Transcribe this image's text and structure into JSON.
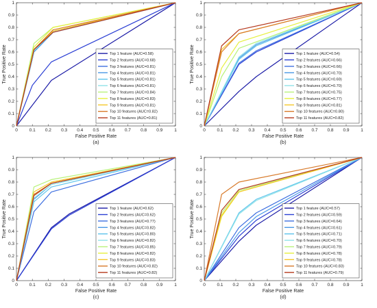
{
  "colors": [
    "#1a1aa6",
    "#2b3fd4",
    "#3d6fe0",
    "#4a98e6",
    "#5ec4ec",
    "#8fe3e8",
    "#b8f27a",
    "#e6f03c",
    "#f5c82a",
    "#d87a2a",
    "#b5381c"
  ],
  "chart_data": [
    {
      "type": "line",
      "caption": "(a)",
      "xlabel": "False Positive Rate",
      "ylabel": "True Positive Rate",
      "xlim": [
        0,
        1
      ],
      "ylim": [
        0,
        1
      ],
      "xticks": [
        "0",
        "0.1",
        "0.2",
        "0.3",
        "0.4",
        "0.5",
        "0.6",
        "0.7",
        "0.8",
        "0.9",
        "1"
      ],
      "yticks": [
        "0",
        "0.1",
        "0.2",
        "0.3",
        "0.4",
        "0.5",
        "0.6",
        "0.7",
        "0.8",
        "0.9",
        "1"
      ],
      "grid": false,
      "legend_position": "bottom-right",
      "series": [
        {
          "name": "Top 1 feature (AUC=0.58)",
          "x": [
            0,
            0.22,
            1
          ],
          "y": [
            0,
            0.37,
            1
          ]
        },
        {
          "name": "Top 2 features (AUC=0.68)",
          "x": [
            0,
            0.1,
            0.22,
            1
          ],
          "y": [
            0,
            0.33,
            0.52,
            1
          ]
        },
        {
          "name": "Top 3 features (AUC=0.81)",
          "x": [
            0,
            0.11,
            0.23,
            1
          ],
          "y": [
            0,
            0.6,
            0.76,
            1
          ]
        },
        {
          "name": "Top 4 features (AUC=0.81)",
          "x": [
            0,
            0.11,
            0.23,
            1
          ],
          "y": [
            0,
            0.6,
            0.76,
            1
          ]
        },
        {
          "name": "Top 5 features (AUC=0.81)",
          "x": [
            0,
            0.11,
            0.23,
            1
          ],
          "y": [
            0,
            0.61,
            0.76,
            1
          ]
        },
        {
          "name": "Top 6 features (AUC=0.81)",
          "x": [
            0,
            0.11,
            0.23,
            1
          ],
          "y": [
            0,
            0.61,
            0.77,
            1
          ]
        },
        {
          "name": "Top 7 features (AUC=0.84)",
          "x": [
            0,
            0.11,
            0.23,
            1
          ],
          "y": [
            0,
            0.67,
            0.8,
            1
          ]
        },
        {
          "name": "Top 8 features (AUC=0.83)",
          "x": [
            0,
            0.11,
            0.23,
            1
          ],
          "y": [
            0,
            0.64,
            0.8,
            1
          ]
        },
        {
          "name": "Top 9 features (AUC=0.81)",
          "x": [
            0,
            0.11,
            0.23,
            1
          ],
          "y": [
            0,
            0.62,
            0.77,
            1
          ]
        },
        {
          "name": "Top 10 features (AUC=0.82)",
          "x": [
            0,
            0.11,
            0.23,
            1
          ],
          "y": [
            0,
            0.62,
            0.78,
            1
          ]
        },
        {
          "name": "Top 11 features (AUC=0.81)",
          "x": [
            0,
            0.11,
            0.23,
            1
          ],
          "y": [
            0,
            0.62,
            0.76,
            1
          ]
        }
      ]
    },
    {
      "type": "line",
      "caption": "(b)",
      "xlabel": "False Positive Rate",
      "ylabel": "True Positive Rate",
      "xlim": [
        0,
        1
      ],
      "ylim": [
        0,
        1
      ],
      "xticks": [
        "0",
        "0.1",
        "0.2",
        "0.3",
        "0.4",
        "0.5",
        "0.6",
        "0.7",
        "0.8",
        "0.9",
        "1"
      ],
      "yticks": [
        "0",
        "0.1",
        "0.2",
        "0.3",
        "0.4",
        "0.5",
        "0.6",
        "0.7",
        "0.8",
        "0.9",
        "1"
      ],
      "grid": false,
      "legend_position": "bottom-right",
      "series": [
        {
          "name": "Top 1 feature (AUC=0.54)",
          "x": [
            0,
            0.22,
            0.33,
            1
          ],
          "y": [
            0,
            0.28,
            0.4,
            1
          ]
        },
        {
          "name": "Top 2 features (AUC=0.66)",
          "x": [
            0,
            0.22,
            0.33,
            1
          ],
          "y": [
            0,
            0.5,
            0.6,
            1
          ]
        },
        {
          "name": "Top 3 features (AUC=0.66)",
          "x": [
            0,
            0.22,
            0.33,
            1
          ],
          "y": [
            0,
            0.51,
            0.61,
            1
          ]
        },
        {
          "name": "Top 4 features (AUC=0.70)",
          "x": [
            0,
            0.22,
            0.33,
            1
          ],
          "y": [
            0,
            0.55,
            0.66,
            1
          ]
        },
        {
          "name": "Top 5 features (AUC=0.69)",
          "x": [
            0,
            0.22,
            0.33,
            1
          ],
          "y": [
            0,
            0.54,
            0.65,
            1
          ]
        },
        {
          "name": "Top 6 features (AUC=0.70)",
          "x": [
            0,
            0.22,
            0.33,
            1
          ],
          "y": [
            0,
            0.56,
            0.67,
            1
          ]
        },
        {
          "name": "Top 7 features (AUC=0.75)",
          "x": [
            0,
            0.11,
            0.22,
            1
          ],
          "y": [
            0,
            0.4,
            0.63,
            1
          ]
        },
        {
          "name": "Top 8 features (AUC=0.77)",
          "x": [
            0,
            0.11,
            0.22,
            1
          ],
          "y": [
            0,
            0.47,
            0.68,
            1
          ]
        },
        {
          "name": "Top 9 features (AUC=0.81)",
          "x": [
            0,
            0.11,
            0.22,
            1
          ],
          "y": [
            0,
            0.62,
            0.75,
            1
          ]
        },
        {
          "name": "Top 10 features (AUC=0.80)",
          "x": [
            0,
            0.11,
            0.22,
            1
          ],
          "y": [
            0,
            0.6,
            0.75,
            1
          ]
        },
        {
          "name": "Top 11 features (AUC=0.82)",
          "x": [
            0,
            0.11,
            0.22,
            1
          ],
          "y": [
            0,
            0.65,
            0.78,
            1
          ]
        }
      ]
    },
    {
      "type": "line",
      "caption": "(c)",
      "xlabel": "False Positive Rate",
      "ylabel": "True Positive Rate",
      "xlim": [
        0,
        1
      ],
      "ylim": [
        0,
        1
      ],
      "xticks": [
        "0",
        "0.1",
        "0.2",
        "0.3",
        "0.4",
        "0.5",
        "0.6",
        "0.7",
        "0.8",
        "0.9",
        "1"
      ],
      "yticks": [
        "0",
        "0.1",
        "0.2",
        "0.3",
        "0.4",
        "0.5",
        "0.6",
        "0.7",
        "0.8",
        "0.9",
        "1"
      ],
      "grid": false,
      "legend_position": "bottom-right",
      "series": [
        {
          "name": "Top 1 feature (AUC=0.62)",
          "x": [
            0,
            0.22,
            0.33,
            1
          ],
          "y": [
            0,
            0.43,
            0.54,
            1
          ]
        },
        {
          "name": "Top 2 features (AUC=0.62)",
          "x": [
            0,
            0.22,
            0.33,
            1
          ],
          "y": [
            0,
            0.42,
            0.53,
            1
          ]
        },
        {
          "name": "Top 3 features (AUC=0.77)",
          "x": [
            0,
            0.11,
            0.22,
            1
          ],
          "y": [
            0,
            0.56,
            0.72,
            1
          ]
        },
        {
          "name": "Top 4 features (AUC=0.82)",
          "x": [
            0,
            0.11,
            0.22,
            1
          ],
          "y": [
            0,
            0.66,
            0.78,
            1
          ]
        },
        {
          "name": "Top 5 features (AUC=0.80)",
          "x": [
            0,
            0.11,
            0.22,
            1
          ],
          "y": [
            0,
            0.64,
            0.76,
            1
          ]
        },
        {
          "name": "Top 6 features (AUC=0.82)",
          "x": [
            0,
            0.11,
            0.22,
            1
          ],
          "y": [
            0,
            0.67,
            0.78,
            1
          ]
        },
        {
          "name": "Top 7 features (AUC=0.85)",
          "x": [
            0,
            0.11,
            0.22,
            1
          ],
          "y": [
            0,
            0.76,
            0.82,
            1
          ]
        },
        {
          "name": "Top 8 features (AUC=0.82)",
          "x": [
            0,
            0.11,
            0.22,
            1
          ],
          "y": [
            0,
            0.7,
            0.79,
            1
          ]
        },
        {
          "name": "Top 9 features (AUC=0.83)",
          "x": [
            0,
            0.11,
            0.22,
            1
          ],
          "y": [
            0,
            0.72,
            0.8,
            1
          ]
        },
        {
          "name": "Top 10 features (AUC=0.82)",
          "x": [
            0,
            0.11,
            0.22,
            1
          ],
          "y": [
            0,
            0.7,
            0.79,
            1
          ]
        },
        {
          "name": "Top 11 features (AUC=0.82)",
          "x": [
            0,
            0.11,
            0.22,
            1
          ],
          "y": [
            0,
            0.69,
            0.79,
            1
          ]
        }
      ]
    },
    {
      "type": "line",
      "caption": "(d)",
      "xlabel": "False Positive Rate",
      "ylabel": "True Positive Rate",
      "xlim": [
        0,
        1
      ],
      "ylim": [
        0,
        1
      ],
      "xticks": [
        "0",
        "0.1",
        "0.2",
        "0.3",
        "0.4",
        "0.5",
        "0.6",
        "0.7",
        "0.8",
        "0.9",
        "1"
      ],
      "yticks": [
        "0",
        "0.1",
        "0.2",
        "0.3",
        "0.4",
        "0.5",
        "0.6",
        "0.7",
        "0.8",
        "0.9",
        "1"
      ],
      "grid": false,
      "legend_position": "bottom-right",
      "series": [
        {
          "name": "Top 1 feature (AUC=0.57)",
          "x": [
            0,
            0.22,
            0.33,
            1
          ],
          "y": [
            0,
            0.32,
            0.45,
            1
          ]
        },
        {
          "name": "Top 2 features (AUC=0.59)",
          "x": [
            0,
            0.22,
            0.33,
            1
          ],
          "y": [
            0,
            0.36,
            0.49,
            1
          ]
        },
        {
          "name": "Top 3 features (AUC=0.64)",
          "x": [
            0,
            0.22,
            0.33,
            1
          ],
          "y": [
            0,
            0.43,
            0.55,
            1
          ]
        },
        {
          "name": "Top 4 features (AUC=0.61)",
          "x": [
            0,
            0.22,
            0.33,
            1
          ],
          "y": [
            0,
            0.39,
            0.52,
            1
          ]
        },
        {
          "name": "Top 5 features (AUC=0.71)",
          "x": [
            0,
            0.22,
            0.33,
            1
          ],
          "y": [
            0,
            0.55,
            0.66,
            1
          ]
        },
        {
          "name": "Top 6 features (AUC=0.70)",
          "x": [
            0,
            0.22,
            0.33,
            1
          ],
          "y": [
            0,
            0.54,
            0.65,
            1
          ]
        },
        {
          "name": "Top 7 features (AUC=0.79)",
          "x": [
            0,
            0.11,
            0.22,
            1
          ],
          "y": [
            0,
            0.55,
            0.73,
            1
          ]
        },
        {
          "name": "Top 8 features (AUC=0.78)",
          "x": [
            0,
            0.11,
            0.22,
            1
          ],
          "y": [
            0,
            0.52,
            0.72,
            1
          ]
        },
        {
          "name": "Top 9 features (AUC=0.78)",
          "x": [
            0,
            0.11,
            0.22,
            1
          ],
          "y": [
            0,
            0.53,
            0.72,
            1
          ]
        },
        {
          "name": "Top 10 features (AUC=0.83)",
          "x": [
            0,
            0.11,
            0.22,
            1
          ],
          "y": [
            0,
            0.7,
            0.8,
            1
          ]
        },
        {
          "name": "Top 11 features (AUC=0.79)",
          "x": [
            0,
            0.11,
            0.22,
            1
          ],
          "y": [
            0,
            0.57,
            0.74,
            1
          ]
        }
      ]
    }
  ]
}
